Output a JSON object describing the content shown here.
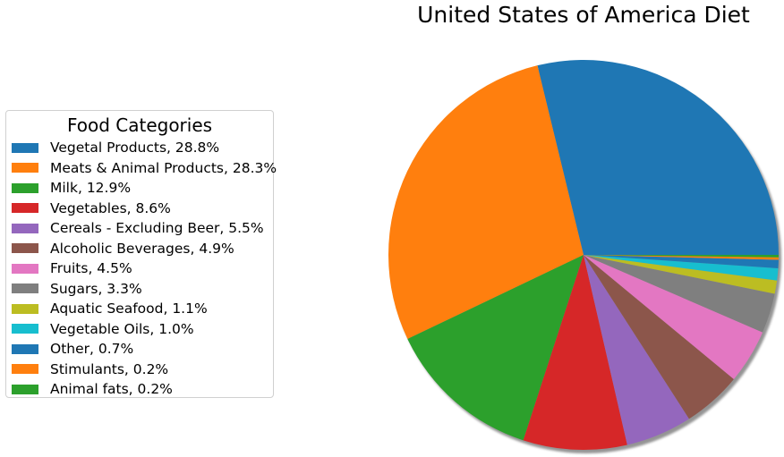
{
  "chart_data": {
    "type": "pie",
    "title": "United States of America Diet",
    "legend_title": "Food Categories",
    "legend_position": "left",
    "start_angle_deg": 0,
    "direction": "counterclockwise",
    "shadow": true,
    "slices": [
      {
        "label": "Vegetal Products, 28.8%",
        "value": 28.8,
        "color": "#1f77b4"
      },
      {
        "label": "Meats & Animal Products, 28.3%",
        "value": 28.3,
        "color": "#ff7f0e"
      },
      {
        "label": "Milk, 12.9%",
        "value": 12.9,
        "color": "#2ca02c"
      },
      {
        "label": "Vegetables, 8.6%",
        "value": 8.6,
        "color": "#d62728"
      },
      {
        "label": "Cereals - Excluding Beer, 5.5%",
        "value": 5.5,
        "color": "#9467bd"
      },
      {
        "label": "Alcoholic Beverages, 4.9%",
        "value": 4.9,
        "color": "#8c564b"
      },
      {
        "label": "Fruits, 4.5%",
        "value": 4.5,
        "color": "#e377c2"
      },
      {
        "label": "Sugars, 3.3%",
        "value": 3.3,
        "color": "#7f7f7f"
      },
      {
        "label": "Aquatic Seafood, 1.1%",
        "value": 1.1,
        "color": "#bcbd22"
      },
      {
        "label": "Vegetable Oils, 1.0%",
        "value": 1.0,
        "color": "#17becf"
      },
      {
        "label": "Other, 0.7%",
        "value": 0.7,
        "color": "#1f77b4"
      },
      {
        "label": "Stimulants, 0.2%",
        "value": 0.2,
        "color": "#ff7f0e"
      },
      {
        "label": "Animal fats, 0.2%",
        "value": 0.2,
        "color": "#2ca02c"
      }
    ]
  }
}
